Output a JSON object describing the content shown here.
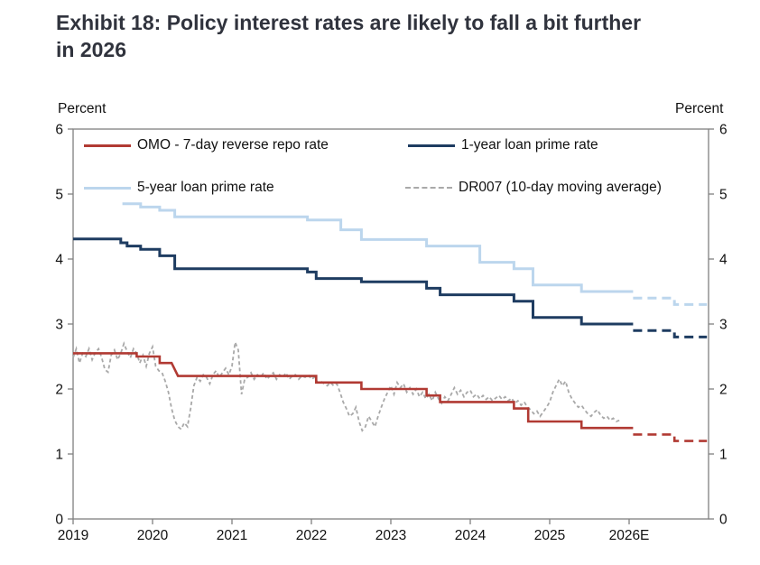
{
  "title": "Exhibit 18: Policy interest rates are likely to fall a bit further\nin 2026",
  "axis_units": {
    "left": "Percent",
    "right": "Percent"
  },
  "colors": {
    "omo_red": "#B13A33",
    "lpr1y_navy": "#1E3C61",
    "lpr5y_lightblue": "#BCD6ED",
    "dr007_gray": "#A9A9A9",
    "axis_gray": "#808080",
    "title_text": "#30333D",
    "tick_text": "#111111"
  },
  "chart_data": {
    "type": "line",
    "title": "Exhibit 18: Policy interest rates are likely to fall a bit further in 2026",
    "xlabel": "",
    "ylabel": "Percent",
    "ylim": [
      0,
      6
    ],
    "xlim": [
      2019,
      2027
    ],
    "grid": false,
    "legend_position": "top-inside",
    "y_ticks": [
      0,
      1,
      2,
      3,
      4,
      5,
      6
    ],
    "x_ticks": [
      {
        "year": 2019,
        "label": "2019"
      },
      {
        "year": 2020,
        "label": "2020"
      },
      {
        "year": 2021,
        "label": "2021"
      },
      {
        "year": 2022,
        "label": "2022"
      },
      {
        "year": 2023,
        "label": "2023"
      },
      {
        "year": 2024,
        "label": "2024"
      },
      {
        "year": 2025,
        "label": "2025"
      },
      {
        "year": 2026,
        "label": "2026E"
      }
    ],
    "series": [
      {
        "id": "lpr5y",
        "name": "5-year loan prime rate",
        "color": "#BCD6ED",
        "width": 3,
        "dash": null,
        "forecast_dash": "10 6",
        "points": [
          [
            2019.62,
            4.85
          ],
          [
            2019.85,
            4.85
          ],
          [
            2019.85,
            4.8
          ],
          [
            2020.09,
            4.8
          ],
          [
            2020.09,
            4.75
          ],
          [
            2020.28,
            4.75
          ],
          [
            2020.28,
            4.65
          ],
          [
            2021.95,
            4.65
          ],
          [
            2021.95,
            4.6
          ],
          [
            2022.37,
            4.6
          ],
          [
            2022.37,
            4.45
          ],
          [
            2022.63,
            4.45
          ],
          [
            2022.63,
            4.3
          ],
          [
            2023.45,
            4.3
          ],
          [
            2023.45,
            4.2
          ],
          [
            2024.12,
            4.2
          ],
          [
            2024.12,
            3.95
          ],
          [
            2024.55,
            3.95
          ],
          [
            2024.55,
            3.85
          ],
          [
            2024.79,
            3.85
          ],
          [
            2024.79,
            3.6
          ],
          [
            2025.4,
            3.6
          ],
          [
            2025.4,
            3.5
          ],
          [
            2026.05,
            3.5
          ]
        ],
        "forecast": [
          [
            2026.05,
            3.4
          ],
          [
            2026.57,
            3.4
          ],
          [
            2026.57,
            3.3
          ],
          [
            2026.98,
            3.3
          ]
        ]
      },
      {
        "id": "lpr1y",
        "name": "1-year loan prime rate",
        "color": "#1E3C61",
        "width": 3,
        "dash": null,
        "forecast_dash": "10 6",
        "points": [
          [
            2019.0,
            4.31
          ],
          [
            2019.6,
            4.31
          ],
          [
            2019.6,
            4.25
          ],
          [
            2019.68,
            4.25
          ],
          [
            2019.68,
            4.2
          ],
          [
            2019.85,
            4.2
          ],
          [
            2019.85,
            4.15
          ],
          [
            2020.09,
            4.15
          ],
          [
            2020.09,
            4.05
          ],
          [
            2020.28,
            4.05
          ],
          [
            2020.28,
            3.85
          ],
          [
            2021.95,
            3.85
          ],
          [
            2021.95,
            3.8
          ],
          [
            2022.06,
            3.8
          ],
          [
            2022.06,
            3.7
          ],
          [
            2022.63,
            3.7
          ],
          [
            2022.63,
            3.65
          ],
          [
            2023.45,
            3.65
          ],
          [
            2023.45,
            3.55
          ],
          [
            2023.62,
            3.55
          ],
          [
            2023.62,
            3.45
          ],
          [
            2024.55,
            3.45
          ],
          [
            2024.55,
            3.35
          ],
          [
            2024.79,
            3.35
          ],
          [
            2024.79,
            3.1
          ],
          [
            2025.4,
            3.1
          ],
          [
            2025.4,
            3.0
          ],
          [
            2026.05,
            3.0
          ]
        ],
        "forecast": [
          [
            2026.05,
            2.9
          ],
          [
            2026.57,
            2.9
          ],
          [
            2026.57,
            2.8
          ],
          [
            2026.98,
            2.8
          ]
        ]
      },
      {
        "id": "dr007",
        "name": "DR007 (10-day moving average)",
        "color": "#A9A9A9",
        "width": 1.8,
        "dash": "4 3",
        "forecast_dash": null,
        "points": [
          [
            2019.0,
            2.48
          ],
          [
            2019.04,
            2.62
          ],
          [
            2019.08,
            2.4
          ],
          [
            2019.12,
            2.55
          ],
          [
            2019.16,
            2.5
          ],
          [
            2019.2,
            2.62
          ],
          [
            2019.24,
            2.45
          ],
          [
            2019.28,
            2.56
          ],
          [
            2019.32,
            2.62
          ],
          [
            2019.36,
            2.48
          ],
          [
            2019.4,
            2.3
          ],
          [
            2019.44,
            2.26
          ],
          [
            2019.48,
            2.52
          ],
          [
            2019.52,
            2.6
          ],
          [
            2019.56,
            2.45
          ],
          [
            2019.6,
            2.55
          ],
          [
            2019.64,
            2.7
          ],
          [
            2019.68,
            2.58
          ],
          [
            2019.72,
            2.48
          ],
          [
            2019.76,
            2.62
          ],
          [
            2019.8,
            2.55
          ],
          [
            2019.84,
            2.4
          ],
          [
            2019.88,
            2.52
          ],
          [
            2019.92,
            2.35
          ],
          [
            2019.96,
            2.55
          ],
          [
            2020.0,
            2.65
          ],
          [
            2020.04,
            2.35
          ],
          [
            2020.08,
            2.28
          ],
          [
            2020.12,
            2.25
          ],
          [
            2020.16,
            2.12
          ],
          [
            2020.2,
            1.95
          ],
          [
            2020.24,
            1.7
          ],
          [
            2020.28,
            1.52
          ],
          [
            2020.32,
            1.42
          ],
          [
            2020.36,
            1.38
          ],
          [
            2020.4,
            1.48
          ],
          [
            2020.44,
            1.42
          ],
          [
            2020.48,
            1.7
          ],
          [
            2020.52,
            2.05
          ],
          [
            2020.56,
            2.18
          ],
          [
            2020.6,
            2.12
          ],
          [
            2020.64,
            2.22
          ],
          [
            2020.68,
            2.18
          ],
          [
            2020.72,
            2.08
          ],
          [
            2020.76,
            2.22
          ],
          [
            2020.8,
            2.28
          ],
          [
            2020.84,
            2.18
          ],
          [
            2020.88,
            2.25
          ],
          [
            2020.92,
            2.32
          ],
          [
            2020.96,
            2.22
          ],
          [
            2021.0,
            2.35
          ],
          [
            2021.04,
            2.72
          ],
          [
            2021.08,
            2.6
          ],
          [
            2021.12,
            1.92
          ],
          [
            2021.16,
            2.15
          ],
          [
            2021.2,
            2.18
          ],
          [
            2021.24,
            2.25
          ],
          [
            2021.28,
            2.15
          ],
          [
            2021.32,
            2.22
          ],
          [
            2021.36,
            2.18
          ],
          [
            2021.4,
            2.25
          ],
          [
            2021.44,
            2.15
          ],
          [
            2021.48,
            2.2
          ],
          [
            2021.52,
            2.25
          ],
          [
            2021.56,
            2.15
          ],
          [
            2021.6,
            2.22
          ],
          [
            2021.64,
            2.18
          ],
          [
            2021.68,
            2.25
          ],
          [
            2021.72,
            2.15
          ],
          [
            2021.76,
            2.2
          ],
          [
            2021.8,
            2.22
          ],
          [
            2021.84,
            2.15
          ],
          [
            2021.88,
            2.2
          ],
          [
            2021.92,
            2.18
          ],
          [
            2021.96,
            2.22
          ],
          [
            2022.0,
            2.15
          ],
          [
            2022.04,
            2.18
          ],
          [
            2022.08,
            2.1
          ],
          [
            2022.12,
            2.12
          ],
          [
            2022.16,
            2.08
          ],
          [
            2022.2,
            2.05
          ],
          [
            2022.24,
            2.1
          ],
          [
            2022.28,
            2.05
          ],
          [
            2022.32,
            2.08
          ],
          [
            2022.36,
            1.95
          ],
          [
            2022.4,
            1.8
          ],
          [
            2022.44,
            1.7
          ],
          [
            2022.48,
            1.58
          ],
          [
            2022.52,
            1.62
          ],
          [
            2022.56,
            1.72
          ],
          [
            2022.6,
            1.5
          ],
          [
            2022.64,
            1.36
          ],
          [
            2022.68,
            1.42
          ],
          [
            2022.72,
            1.58
          ],
          [
            2022.76,
            1.5
          ],
          [
            2022.8,
            1.42
          ],
          [
            2022.84,
            1.58
          ],
          [
            2022.88,
            1.72
          ],
          [
            2022.92,
            1.85
          ],
          [
            2022.96,
            1.95
          ],
          [
            2023.0,
            2.05
          ],
          [
            2023.04,
            1.92
          ],
          [
            2023.08,
            2.1
          ],
          [
            2023.12,
            2.02
          ],
          [
            2023.16,
            2.08
          ],
          [
            2023.2,
            1.95
          ],
          [
            2023.24,
            2.02
          ],
          [
            2023.28,
            1.92
          ],
          [
            2023.32,
            2.0
          ],
          [
            2023.36,
            1.88
          ],
          [
            2023.4,
            1.95
          ],
          [
            2023.44,
            1.85
          ],
          [
            2023.48,
            1.92
          ],
          [
            2023.52,
            1.82
          ],
          [
            2023.56,
            1.95
          ],
          [
            2023.6,
            1.85
          ],
          [
            2023.64,
            1.78
          ],
          [
            2023.68,
            1.88
          ],
          [
            2023.72,
            1.82
          ],
          [
            2023.76,
            1.92
          ],
          [
            2023.8,
            2.02
          ],
          [
            2023.84,
            1.92
          ],
          [
            2023.88,
            1.98
          ],
          [
            2023.92,
            1.88
          ],
          [
            2023.96,
            1.95
          ],
          [
            2024.0,
            1.98
          ],
          [
            2024.04,
            1.88
          ],
          [
            2024.08,
            1.92
          ],
          [
            2024.12,
            1.85
          ],
          [
            2024.16,
            1.9
          ],
          [
            2024.2,
            1.84
          ],
          [
            2024.24,
            1.88
          ],
          [
            2024.28,
            1.82
          ],
          [
            2024.32,
            1.86
          ],
          [
            2024.36,
            1.9
          ],
          [
            2024.4,
            1.84
          ],
          [
            2024.44,
            1.88
          ],
          [
            2024.48,
            1.82
          ],
          [
            2024.52,
            1.86
          ],
          [
            2024.56,
            1.78
          ],
          [
            2024.6,
            1.82
          ],
          [
            2024.64,
            1.75
          ],
          [
            2024.68,
            1.8
          ],
          [
            2024.72,
            1.72
          ],
          [
            2024.76,
            1.68
          ],
          [
            2024.8,
            1.62
          ],
          [
            2024.84,
            1.66
          ],
          [
            2024.88,
            1.58
          ],
          [
            2024.92,
            1.65
          ],
          [
            2024.96,
            1.72
          ],
          [
            2025.0,
            1.8
          ],
          [
            2025.04,
            1.95
          ],
          [
            2025.08,
            2.05
          ],
          [
            2025.12,
            2.15
          ],
          [
            2025.16,
            2.05
          ],
          [
            2025.2,
            2.12
          ],
          [
            2025.24,
            1.95
          ],
          [
            2025.28,
            1.85
          ],
          [
            2025.32,
            1.78
          ],
          [
            2025.36,
            1.72
          ],
          [
            2025.4,
            1.75
          ],
          [
            2025.44,
            1.68
          ],
          [
            2025.48,
            1.62
          ],
          [
            2025.52,
            1.58
          ],
          [
            2025.56,
            1.64
          ],
          [
            2025.6,
            1.68
          ],
          [
            2025.64,
            1.6
          ],
          [
            2025.68,
            1.55
          ],
          [
            2025.72,
            1.58
          ],
          [
            2025.76,
            1.52
          ],
          [
            2025.8,
            1.55
          ],
          [
            2025.84,
            1.5
          ],
          [
            2025.88,
            1.52
          ]
        ],
        "forecast": null
      },
      {
        "id": "omo",
        "name": "OMO - 7-day reverse repo rate",
        "color": "#B13A33",
        "width": 2.6,
        "dash": null,
        "forecast_dash": "10 6",
        "points": [
          [
            2019.0,
            2.55
          ],
          [
            2019.8,
            2.55
          ],
          [
            2019.8,
            2.5
          ],
          [
            2020.09,
            2.5
          ],
          [
            2020.09,
            2.4
          ],
          [
            2020.24,
            2.4
          ],
          [
            2020.32,
            2.2
          ],
          [
            2022.06,
            2.2
          ],
          [
            2022.06,
            2.1
          ],
          [
            2022.63,
            2.1
          ],
          [
            2022.63,
            2.0
          ],
          [
            2023.45,
            2.0
          ],
          [
            2023.45,
            1.9
          ],
          [
            2023.62,
            1.9
          ],
          [
            2023.62,
            1.8
          ],
          [
            2024.55,
            1.8
          ],
          [
            2024.55,
            1.7
          ],
          [
            2024.73,
            1.7
          ],
          [
            2024.73,
            1.5
          ],
          [
            2025.4,
            1.5
          ],
          [
            2025.4,
            1.4
          ],
          [
            2026.05,
            1.4
          ]
        ],
        "forecast": [
          [
            2026.05,
            1.3
          ],
          [
            2026.57,
            1.3
          ],
          [
            2026.57,
            1.2
          ],
          [
            2026.98,
            1.2
          ]
        ]
      }
    ]
  },
  "legend": {
    "items": [
      {
        "series": "omo",
        "label": "OMO - 7-day reverse repo rate"
      },
      {
        "series": "lpr1y",
        "label": "1-year loan prime rate"
      },
      {
        "series": "lpr5y",
        "label": "5-year loan prime rate"
      },
      {
        "series": "dr007",
        "label": "DR007 (10-day moving average)"
      }
    ]
  }
}
